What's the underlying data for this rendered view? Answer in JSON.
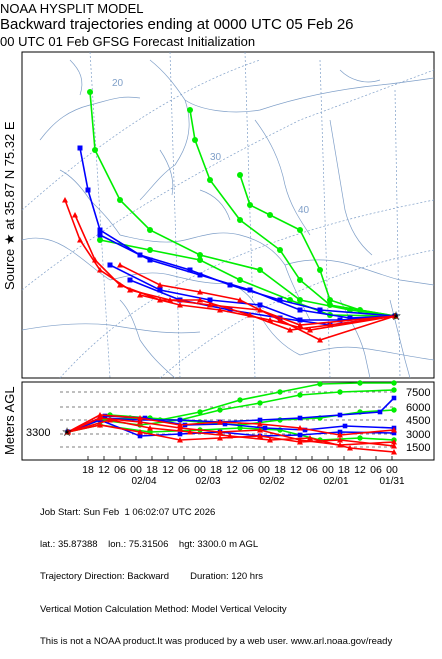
{
  "title": {
    "line1": "NOAA HYSPLIT MODEL",
    "line2": "Backward trajectories ending at 0000 UTC 05 Feb 26",
    "line3": "00 UTC 01 Feb    GFSG  Forecast Initialization"
  },
  "side_label": {
    "source_text": "Source",
    "at_text": "at",
    "lat": "35.87 N",
    "lon": "75.32 E"
  },
  "map": {
    "lat_labels": [
      "20",
      "30",
      "40"
    ],
    "source_marker": "star",
    "map_colors": {
      "coast": "#7f9fc8",
      "graticule": "#7f9fc8",
      "box": "#000000"
    }
  },
  "vertical_panel": {
    "ylabel": "Meters AGL",
    "start_height_label": "3300",
    "right_ticks": [
      "7500",
      "6000",
      "4500",
      "3000",
      "1500"
    ],
    "time_ticks": [
      "18",
      "12",
      "06",
      "00",
      "18",
      "12",
      "06",
      "00",
      "18",
      "12",
      "06",
      "00",
      "18",
      "12",
      "06",
      "00",
      "18",
      "12",
      "06",
      "00"
    ],
    "date_labels": [
      "02/04",
      "02/03",
      "02/02",
      "02/01",
      "01/31"
    ]
  },
  "footer": {
    "line1": "Job Start: Sun Feb  1 06:02:07 UTC 2026",
    "line2": "lat.: 35.87388    lon.: 75.31506    hgt: 3300.0 m AGL",
    "line3": "Trajectory Direction: Backward        Duration: 120 hrs",
    "line4": "Vertical Motion Calculation Method: Model Vertical Velocity",
    "line5": "This is not a NOAA product.It was produced by a web user. www.arl.noaa.gov/ready"
  },
  "series_colors": {
    "red": "#ff0000",
    "blue": "#0000ff",
    "green": "#00ee00"
  }
}
